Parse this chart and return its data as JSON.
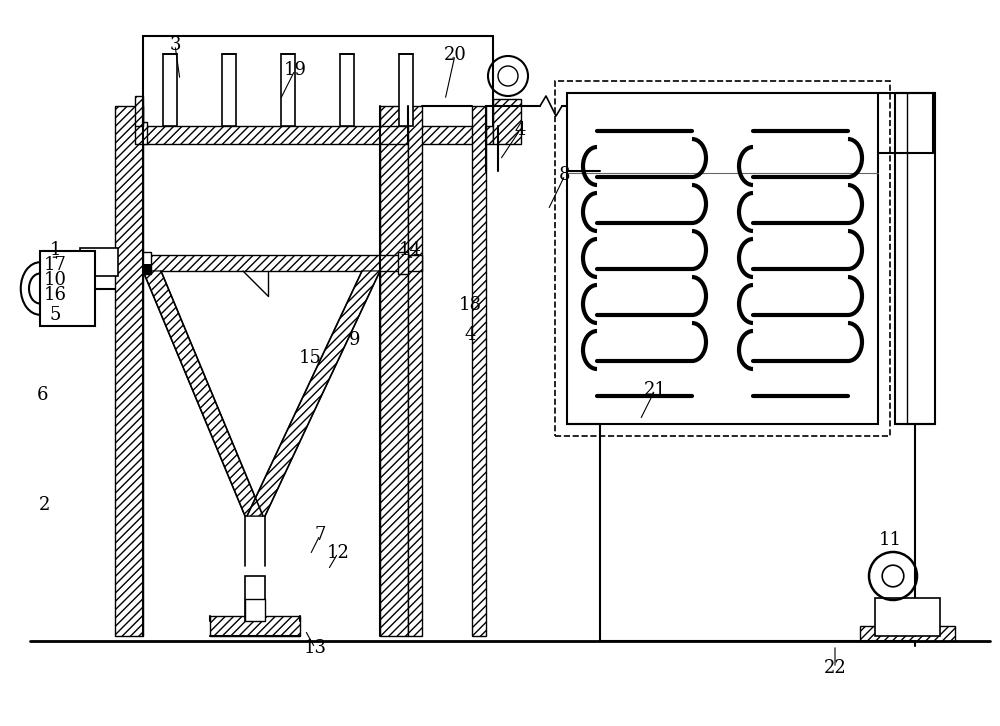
{
  "bg_color": "#ffffff",
  "line_color": "#000000",
  "fig_width": 10.0,
  "fig_height": 7.26,
  "dpi": 100
}
